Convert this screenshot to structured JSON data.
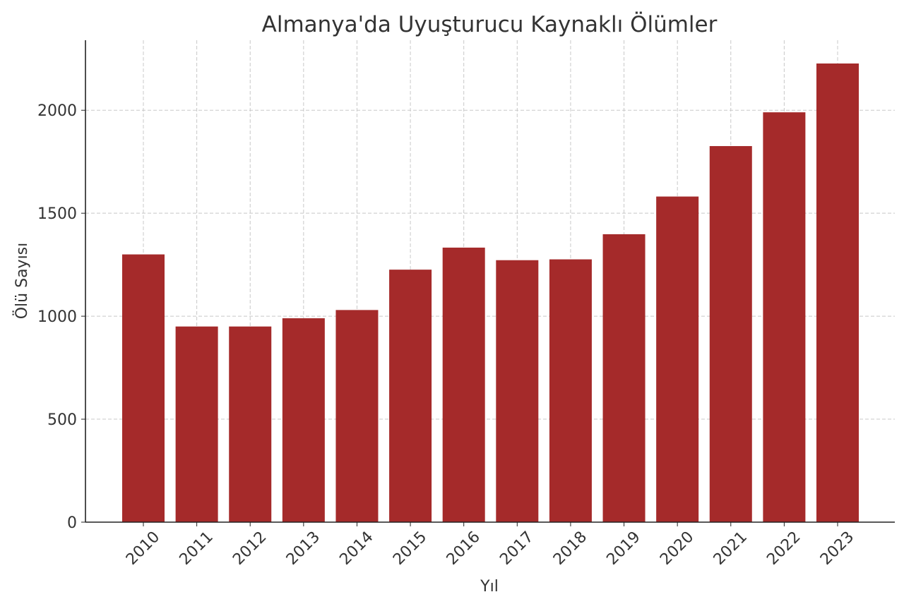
{
  "chart_data": {
    "type": "bar",
    "title": "Almanya'da Uyuşturucu Kaynaklı Ölümler",
    "x_label": "Yıl",
    "y_label": "Ölü Sayısı",
    "categories": [
      "2010",
      "2011",
      "2012",
      "2013",
      "2014",
      "2015",
      "2016",
      "2017",
      "2018",
      "2019",
      "2020",
      "2021",
      "2022",
      "2023"
    ],
    "values": [
      1300,
      950,
      950,
      990,
      1030,
      1226,
      1333,
      1272,
      1276,
      1398,
      1581,
      1826,
      1990,
      2227
    ],
    "color": "#a52a2a",
    "ylim": [
      0,
      2340
    ],
    "yticks": [
      0,
      500,
      1000,
      1500,
      2000
    ],
    "grid": true
  }
}
